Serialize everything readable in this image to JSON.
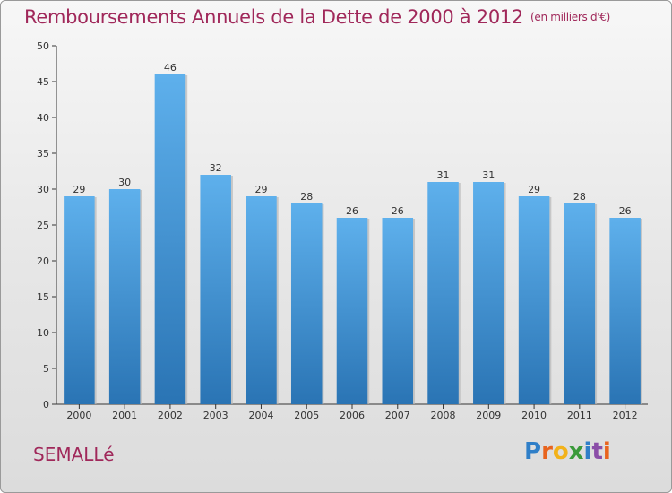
{
  "title": "Remboursements Annuels de la Dette de 2000 à 2012",
  "unit": "(en milliers d'€)",
  "commune": "SEMALLé",
  "logo": {
    "text": "Proxiti",
    "letters": [
      "P",
      "r",
      "o",
      "x",
      "i",
      "t",
      "i"
    ],
    "colors": [
      "#2f7fc8",
      "#e8641e",
      "#f2b21a",
      "#3a9a3a",
      "#2f7fc8",
      "#8b4ea8",
      "#e8641e"
    ]
  },
  "colors": {
    "title": "#a0285a",
    "bar_top": "#5eb0ec",
    "bar_bottom": "#2a74b4",
    "axis": "#333333",
    "grid": "#bbbbbb"
  },
  "chart_data": {
    "type": "bar",
    "title": "Remboursements Annuels de la Dette de 2000 à 2012",
    "xlabel": "",
    "ylabel": "",
    "categories": [
      "2000",
      "2001",
      "2002",
      "2003",
      "2004",
      "2005",
      "2006",
      "2007",
      "2008",
      "2009",
      "2010",
      "2011",
      "2012"
    ],
    "values": [
      29,
      30,
      46,
      32,
      29,
      28,
      26,
      26,
      31,
      31,
      29,
      28,
      26
    ],
    "ylim": [
      0,
      50
    ],
    "yticks": [
      0,
      5,
      10,
      15,
      20,
      25,
      30,
      35,
      40,
      45,
      50
    ],
    "grid": false,
    "legend": "none"
  }
}
